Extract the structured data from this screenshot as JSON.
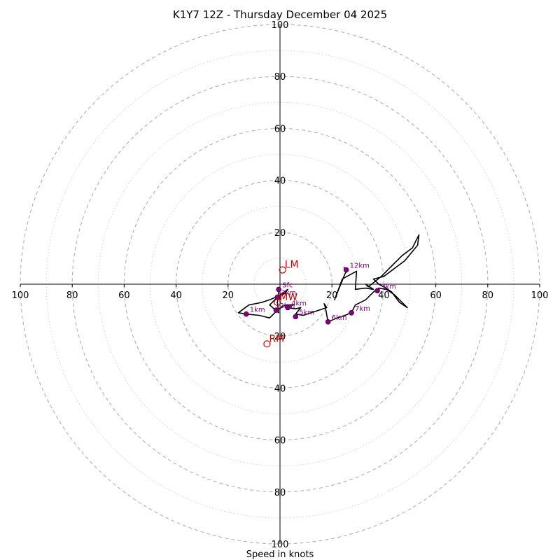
{
  "chart_data": {
    "type": "scatter",
    "title": "K1Y7 12Z - Thursday December 04 2025",
    "xlabel": "Speed in knots",
    "ylabel": "",
    "xlim": [
      -100,
      100
    ],
    "ylim": [
      -100,
      100
    ],
    "rings_major": [
      20,
      40,
      60,
      80,
      100
    ],
    "rings_minor": [
      10,
      30,
      50,
      70,
      90
    ],
    "tick_labels": [
      "100",
      "80",
      "60",
      "40",
      "20",
      "20",
      "40",
      "60",
      "80",
      "100"
    ],
    "tick_values": [
      -100,
      -80,
      -60,
      -40,
      -20,
      20,
      40,
      60,
      80,
      100
    ],
    "hodograph": [
      [
        -0.5,
        -3
      ],
      [
        -1,
        -7
      ],
      [
        -0.5,
        -11
      ],
      [
        -4,
        -8
      ],
      [
        -1,
        -5
      ],
      [
        3,
        -2
      ],
      [
        2,
        -3.5
      ],
      [
        -4,
        -6
      ],
      [
        -7,
        -7
      ],
      [
        -12,
        -8
      ],
      [
        -16,
        -11
      ],
      [
        -13,
        -11.5
      ],
      [
        -8,
        -12
      ],
      [
        -4,
        -13
      ],
      [
        -1,
        -10
      ],
      [
        2,
        -8
      ],
      [
        5,
        -8
      ],
      [
        3,
        -9
      ],
      [
        6,
        -9.5
      ],
      [
        8,
        -9
      ],
      [
        6,
        -11.5
      ],
      [
        9,
        -12
      ],
      [
        12,
        -11
      ],
      [
        15,
        -10
      ],
      [
        18,
        -9
      ],
      [
        17,
        -7.5
      ],
      [
        17.5,
        -9
      ],
      [
        18.5,
        -14.5
      ],
      [
        22,
        -13
      ],
      [
        25,
        -12
      ],
      [
        27.5,
        -11
      ],
      [
        29,
        -8
      ],
      [
        33,
        -6
      ],
      [
        36,
        -3
      ],
      [
        38,
        -1.5
      ],
      [
        41,
        -2
      ],
      [
        44,
        -4
      ],
      [
        46,
        -6
      ],
      [
        49,
        -9
      ],
      [
        46,
        -7
      ],
      [
        43,
        -3
      ],
      [
        40,
        -1
      ],
      [
        38,
        0
      ],
      [
        36,
        2
      ],
      [
        40,
        3
      ],
      [
        44,
        6
      ],
      [
        48,
        9
      ],
      [
        53,
        15
      ],
      [
        53.5,
        19
      ],
      [
        51,
        14
      ],
      [
        47,
        11
      ],
      [
        43,
        7
      ],
      [
        39,
        3
      ],
      [
        34,
        -1
      ],
      [
        33,
        0
      ],
      [
        36,
        -2
      ],
      [
        33,
        -1.5
      ],
      [
        29,
        -2
      ],
      [
        29.5,
        5
      ],
      [
        24,
        2
      ],
      [
        21,
        -6
      ],
      [
        23,
        -1
      ],
      [
        25,
        4
      ],
      [
        26,
        5.5
      ],
      [
        24.5,
        6.5
      ]
    ],
    "height_markers": [
      {
        "label": "Sfc",
        "u": -0.5,
        "v": -2
      },
      {
        "label": "3km",
        "u": -1,
        "v": -5
      },
      {
        "label": "1km",
        "u": -13,
        "v": -11.5
      },
      {
        "label": "2km",
        "u": -1.5,
        "v": -10
      },
      {
        "label": "4km",
        "u": 3,
        "v": -9
      },
      {
        "label": "5km",
        "u": 6,
        "v": -12.5
      },
      {
        "label": "6km",
        "u": 18.5,
        "v": -14.5
      },
      {
        "label": "7km",
        "u": 27.5,
        "v": -11
      },
      {
        "label": "9km",
        "u": 37.5,
        "v": -2.5
      },
      {
        "label": "12km",
        "u": 25.5,
        "v": 5.5
      }
    ],
    "storm_motion": [
      {
        "label": "LM",
        "u": 1,
        "v": 5.5
      },
      {
        "label": "MW",
        "u": -1,
        "v": -7
      },
      {
        "label": "RM",
        "u": -5,
        "v": -23
      }
    ],
    "colors": {
      "line": "#000000",
      "marker": "#800080",
      "storm": "#cc0000",
      "ring": "#b0b0b0"
    }
  }
}
